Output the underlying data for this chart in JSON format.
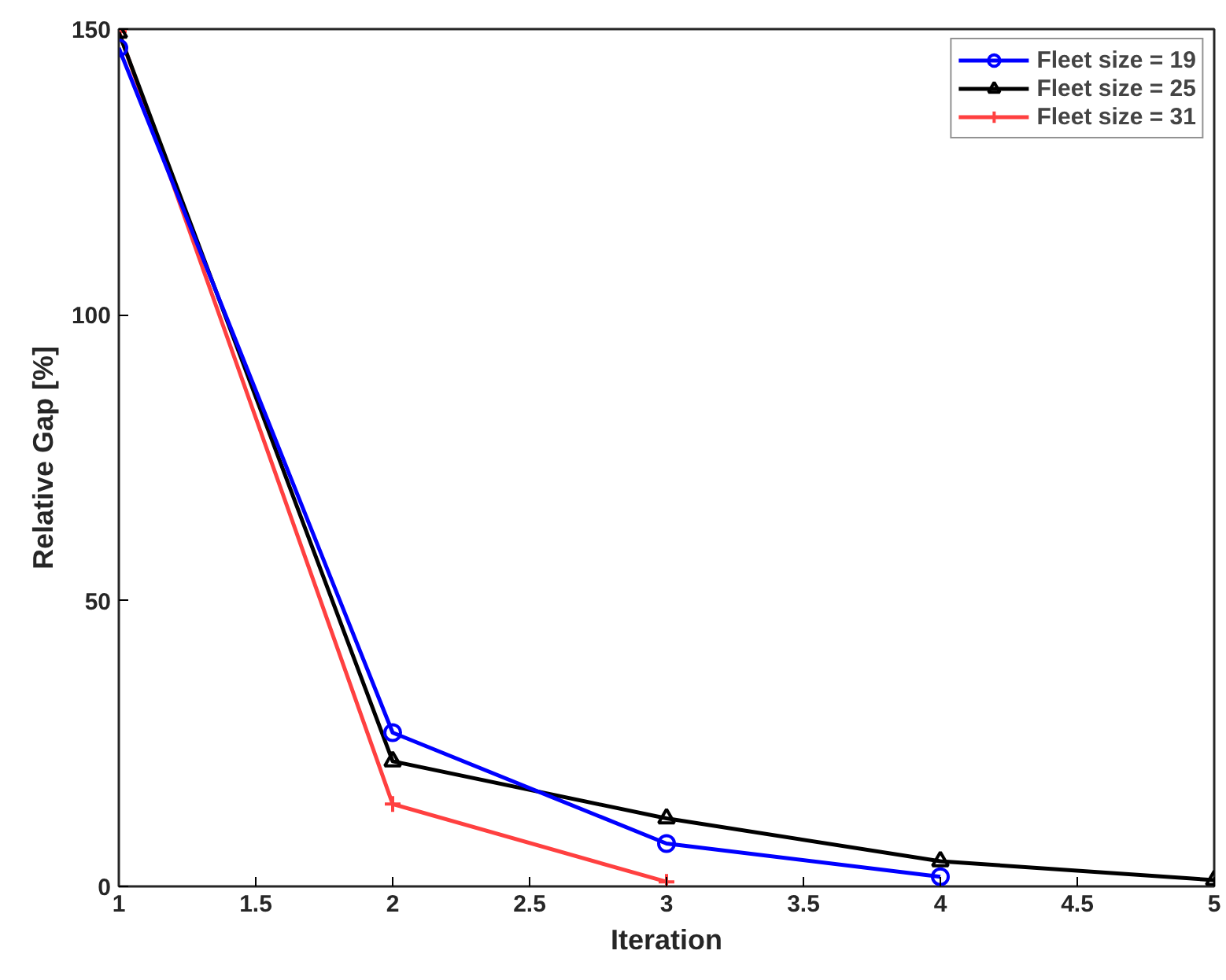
{
  "chart_data": {
    "type": "line",
    "xlabel": "Iteration",
    "ylabel": "Relative Gap [%]",
    "xlim": [
      1,
      5
    ],
    "xticks": [
      1,
      1.5,
      2,
      2.5,
      3,
      3.5,
      4,
      4.5,
      5
    ],
    "ylim": [
      0,
      150
    ],
    "yticks": [
      0,
      50,
      100,
      150
    ],
    "grid": false,
    "legend": "top right",
    "line_style": "solid",
    "series": [
      {
        "name": "Fleet size = 19",
        "color": "#0000ff",
        "marker": "circle",
        "x": [
          1,
          2,
          3,
          4
        ],
        "values": [
          146.7,
          26.9,
          7.5,
          1.7
        ]
      },
      {
        "name": "Fleet size = 25",
        "color": "#000000",
        "marker": "triangle",
        "x": [
          1,
          2,
          3,
          4,
          5
        ],
        "values": [
          149.4,
          21.9,
          11.9,
          4.4,
          1.1
        ]
      },
      {
        "name": "Fleet size = 31",
        "color": "#ff4040",
        "marker": "cross",
        "x": [
          1,
          2,
          3
        ],
        "values": [
          149.6,
          14.4,
          0.8
        ]
      }
    ]
  }
}
